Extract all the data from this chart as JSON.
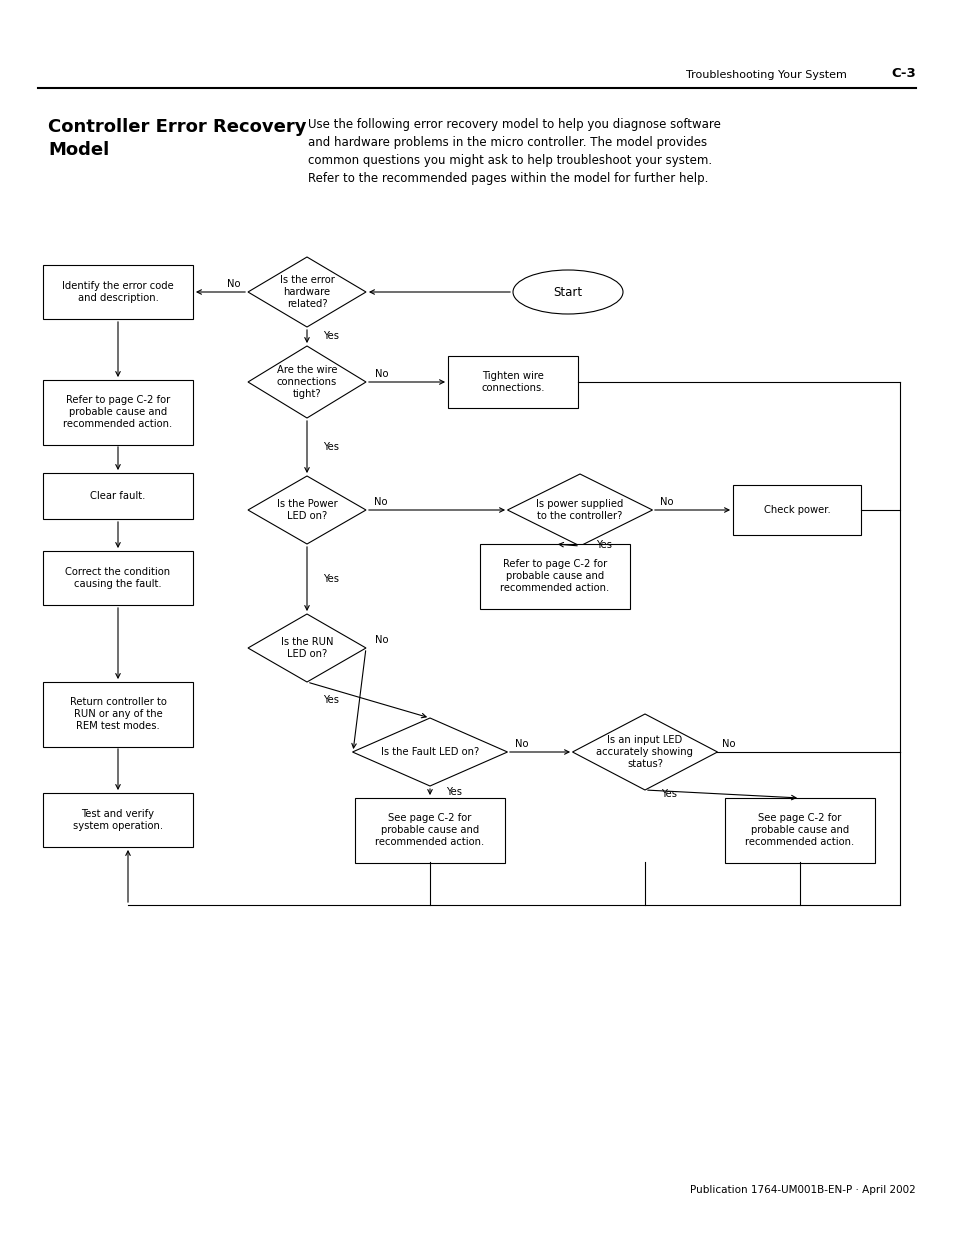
{
  "page_header_left": "Troubleshooting Your System",
  "page_header_right": "C-3",
  "section_title": "Controller Error Recovery\nModel",
  "body_text": "Use the following error recovery model to help you diagnose software\nand hardware problems in the micro controller. The model provides\ncommon questions you might ask to help troubleshoot your system.\nRefer to the recommended pages within the model for further help.",
  "footer": "Publication 1764-UM001B-EN-P · April 2002",
  "bg_color": "#ffffff"
}
